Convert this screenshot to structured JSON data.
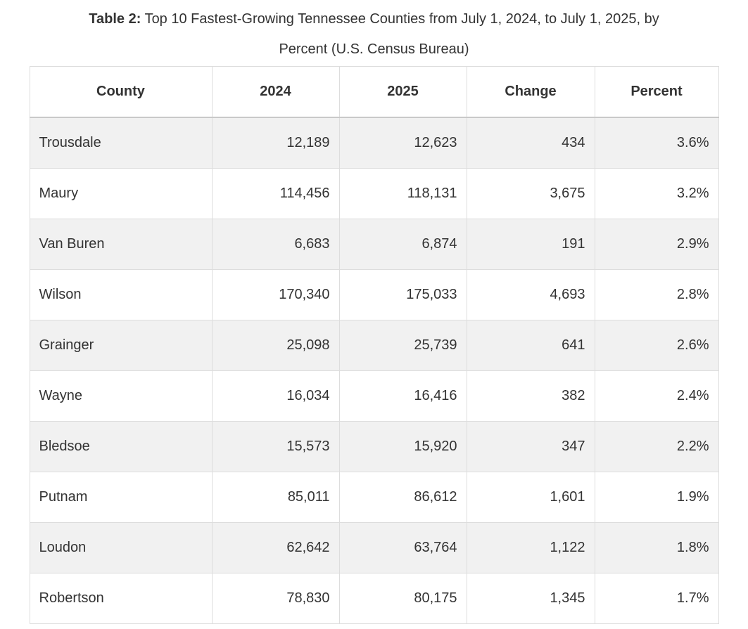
{
  "caption": {
    "label": "Table 2:",
    "line1": "Top 10 Fastest-Growing Tennessee Counties from July 1, 2024, to July 1, 2025, by",
    "line2": "Percent (U.S. Census Bureau)"
  },
  "table": {
    "headers": [
      "County",
      "2024",
      "2025",
      "Change",
      "Percent"
    ],
    "rows": [
      [
        "Trousdale",
        "12,189",
        "12,623",
        "434",
        "3.6%"
      ],
      [
        "Maury",
        "114,456",
        "118,131",
        "3,675",
        "3.2%"
      ],
      [
        "Van Buren",
        "6,683",
        "6,874",
        "191",
        "2.9%"
      ],
      [
        "Wilson",
        "170,340",
        "175,033",
        "4,693",
        "2.8%"
      ],
      [
        "Grainger",
        "25,098",
        "25,739",
        "641",
        "2.6%"
      ],
      [
        "Wayne",
        "16,034",
        "16,416",
        "382",
        "2.4%"
      ],
      [
        "Bledsoe",
        "15,573",
        "15,920",
        "347",
        "2.2%"
      ],
      [
        "Putnam",
        "85,011",
        "86,612",
        "1,601",
        "1.9%"
      ],
      [
        "Loudon",
        "62,642",
        "63,764",
        "1,122",
        "1.8%"
      ],
      [
        "Robertson",
        "78,830",
        "80,175",
        "1,345",
        "1.7%"
      ]
    ]
  },
  "chart_data": {
    "type": "table",
    "title": "Table 2: Top 10 Fastest-Growing Tennessee Counties from July 1, 2024, to July 1, 2025, by Percent (U.S. Census Bureau)",
    "columns": [
      "County",
      "2024",
      "2025",
      "Change",
      "Percent"
    ],
    "rows": [
      {
        "county": "Trousdale",
        "pop_2024": 12189,
        "pop_2025": 12623,
        "change": 434,
        "percent_growth": 3.6
      },
      {
        "county": "Maury",
        "pop_2024": 114456,
        "pop_2025": 118131,
        "change": 3675,
        "percent_growth": 3.2
      },
      {
        "county": "Van Buren",
        "pop_2024": 6683,
        "pop_2025": 6874,
        "change": 191,
        "percent_growth": 2.9
      },
      {
        "county": "Wilson",
        "pop_2024": 170340,
        "pop_2025": 175033,
        "change": 4693,
        "percent_growth": 2.8
      },
      {
        "county": "Grainger",
        "pop_2024": 25098,
        "pop_2025": 25739,
        "change": 641,
        "percent_growth": 2.6
      },
      {
        "county": "Wayne",
        "pop_2024": 16034,
        "pop_2025": 16416,
        "change": 382,
        "percent_growth": 2.4
      },
      {
        "county": "Bledsoe",
        "pop_2024": 15573,
        "pop_2025": 15920,
        "change": 347,
        "percent_growth": 2.2
      },
      {
        "county": "Putnam",
        "pop_2024": 85011,
        "pop_2025": 86612,
        "change": 1601,
        "percent_growth": 1.9
      },
      {
        "county": "Loudon",
        "pop_2024": 62642,
        "pop_2025": 63764,
        "change": 1122,
        "percent_growth": 1.8
      },
      {
        "county": "Robertson",
        "pop_2024": 78830,
        "pop_2025": 80175,
        "change": 1345,
        "percent_growth": 1.7
      }
    ]
  },
  "colors": {
    "text": "#333333",
    "border": "#dddddd",
    "header_border": "#c9c9c9",
    "stripe": "#f1f1f1",
    "background": "#ffffff"
  }
}
